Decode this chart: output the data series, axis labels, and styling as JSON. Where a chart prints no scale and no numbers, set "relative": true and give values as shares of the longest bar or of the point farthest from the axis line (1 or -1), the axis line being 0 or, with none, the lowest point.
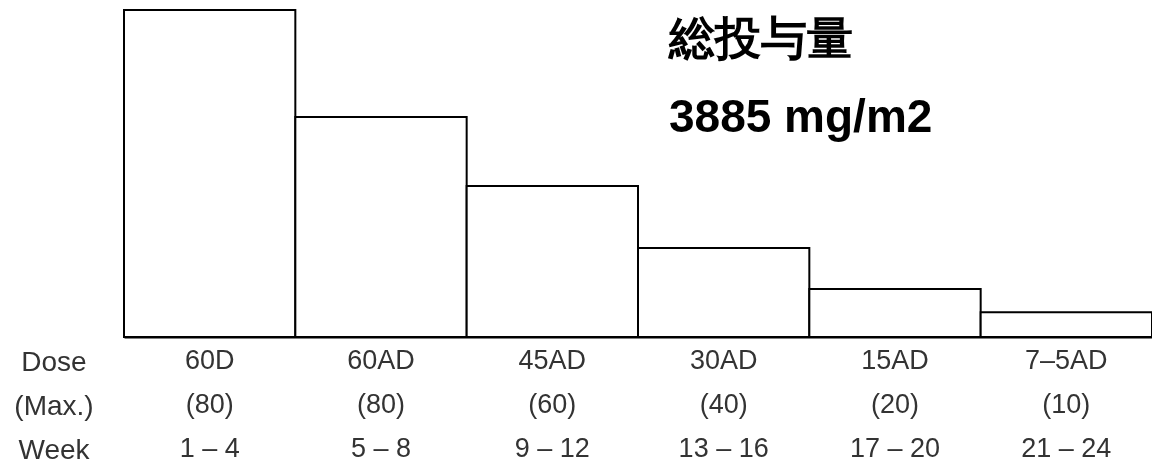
{
  "chart_data": {
    "type": "bar",
    "relative": true,
    "categories": [
      "60D\n(80)\n1 – 4",
      "60AD\n(80)\n5 – 8",
      "45AD\n(60)\n9 – 12",
      "30AD\n(40)\n13 – 16",
      "15AD\n(20)\n17 – 20",
      "7–5AD\n(10)\n21 – 24"
    ],
    "values": [
      1,
      0.673,
      0.462,
      0.272,
      0.147,
      0.076
    ],
    "color": "#ffffff",
    "xlabel": "Dose\n(Max.)\nWeek",
    "annotations": [
      "総投与量\n3885 mg/m2"
    ],
    "grid": false
  }
}
